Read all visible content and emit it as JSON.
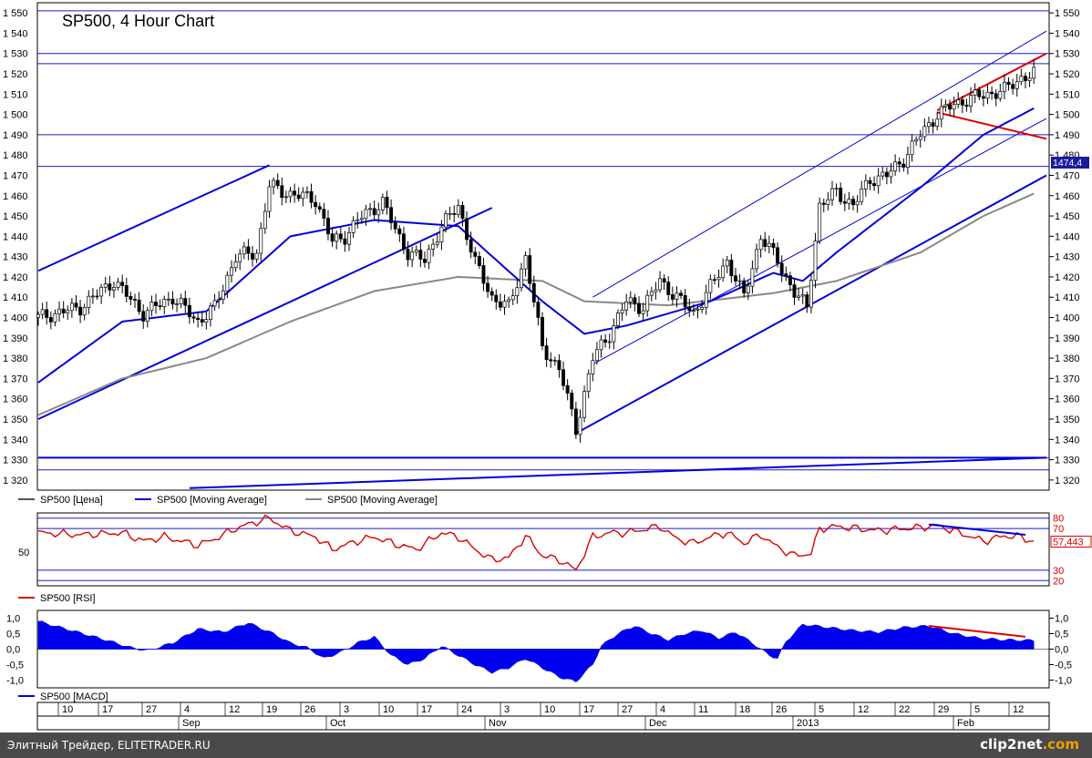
{
  "chart_data": [
    {
      "type": "candlestick",
      "title": "SP500, 4 Hour Chart",
      "ylim": [
        1315,
        1555
      ],
      "y_ticks": [
        1320,
        1330,
        1340,
        1350,
        1360,
        1370,
        1380,
        1390,
        1400,
        1410,
        1420,
        1430,
        1440,
        1450,
        1460,
        1470,
        1480,
        1490,
        1500,
        1510,
        1520,
        1530,
        1540,
        1550
      ],
      "last_price_label": "1474,4",
      "grid": false,
      "legend_position": "bottom-left",
      "legend": [
        {
          "label": "SP500 [Цена]",
          "color": "#555555"
        },
        {
          "label": "SP500 [Moving Average]",
          "color": "#0000dd"
        },
        {
          "label": "SP500 [Moving Average]",
          "color": "#888888"
        }
      ],
      "horizontal_levels": [
        1551,
        1530,
        1525,
        1490,
        1474.4,
        1331,
        1325
      ],
      "price_anchors": [
        [
          0,
          1400
        ],
        [
          10,
          1405
        ],
        [
          18,
          1418
        ],
        [
          25,
          1402
        ],
        [
          32,
          1410
        ],
        [
          38,
          1398
        ],
        [
          42,
          1405
        ],
        [
          47,
          1430
        ],
        [
          52,
          1432
        ],
        [
          55,
          1465
        ],
        [
          58,
          1462
        ],
        [
          62,
          1460
        ],
        [
          66,
          1458
        ],
        [
          70,
          1437
        ],
        [
          73,
          1440
        ],
        [
          76,
          1448
        ],
        [
          82,
          1457
        ],
        [
          85,
          1443
        ],
        [
          88,
          1432
        ],
        [
          92,
          1428
        ],
        [
          96,
          1445
        ],
        [
          100,
          1455
        ],
        [
          104,
          1427
        ],
        [
          108,
          1410
        ],
        [
          112,
          1405
        ],
        [
          116,
          1430
        ],
        [
          120,
          1385
        ],
        [
          124,
          1375
        ],
        [
          128,
          1345
        ],
        [
          132,
          1380
        ],
        [
          136,
          1392
        ],
        [
          140,
          1408
        ],
        [
          144,
          1405
        ],
        [
          148,
          1418
        ],
        [
          152,
          1410
        ],
        [
          156,
          1402
        ],
        [
          160,
          1415
        ],
        [
          164,
          1428
        ],
        [
          168,
          1410
        ],
        [
          172,
          1440
        ],
        [
          176,
          1428
        ],
        [
          180,
          1412
        ],
        [
          183,
          1405
        ],
        [
          186,
          1455
        ],
        [
          190,
          1462
        ],
        [
          194,
          1455
        ],
        [
          198,
          1468
        ],
        [
          202,
          1470
        ],
        [
          206,
          1478
        ],
        [
          210,
          1490
        ],
        [
          214,
          1500
        ],
        [
          218,
          1505
        ],
        [
          222,
          1508
        ],
        [
          226,
          1510
        ],
        [
          230,
          1512
        ],
        [
          234,
          1518
        ],
        [
          237,
          1520
        ]
      ],
      "moving_average_blue": [
        [
          0,
          1368
        ],
        [
          20,
          1398
        ],
        [
          40,
          1403
        ],
        [
          60,
          1440
        ],
        [
          80,
          1448
        ],
        [
          100,
          1445
        ],
        [
          120,
          1408
        ],
        [
          130,
          1392
        ],
        [
          140,
          1396
        ],
        [
          160,
          1408
        ],
        [
          175,
          1422
        ],
        [
          182,
          1418
        ],
        [
          190,
          1432
        ],
        [
          210,
          1464
        ],
        [
          225,
          1490
        ],
        [
          237,
          1503
        ]
      ],
      "moving_average_grey": [
        [
          0,
          1352
        ],
        [
          20,
          1370
        ],
        [
          40,
          1380
        ],
        [
          60,
          1398
        ],
        [
          80,
          1413
        ],
        [
          100,
          1420
        ],
        [
          120,
          1418
        ],
        [
          130,
          1408
        ],
        [
          150,
          1406
        ],
        [
          175,
          1412
        ],
        [
          190,
          1418
        ],
        [
          210,
          1432
        ],
        [
          225,
          1450
        ],
        [
          237,
          1461
        ]
      ],
      "trendlines": [
        {
          "color": "#0000dd",
          "from": [
            0,
            1423
          ],
          "to": [
            55,
            1475
          ]
        },
        {
          "color": "#0000dd",
          "from": [
            0,
            1350
          ],
          "to": [
            108,
            1454
          ]
        },
        {
          "color": "#0000dd",
          "from": [
            128,
            1343
          ],
          "to": [
            240,
            1470
          ]
        },
        {
          "color": "#0000dd",
          "from": [
            132,
            1377
          ],
          "to": [
            240,
            1498
          ]
        },
        {
          "color": "#0000dd",
          "from": [
            132,
            1410
          ],
          "to": [
            240,
            1541
          ]
        },
        {
          "color": "#dd0000",
          "from": [
            214,
            1502
          ],
          "to": [
            240,
            1530
          ]
        },
        {
          "color": "#dd0000",
          "from": [
            214,
            1501
          ],
          "to": [
            240,
            1488
          ]
        },
        {
          "color": "#0000dd",
          "from": [
            0,
            1331
          ],
          "to": [
            240,
            1331
          ]
        },
        {
          "color": "#0000dd",
          "from": [
            36,
            1316
          ],
          "to": [
            240,
            1331
          ]
        }
      ]
    },
    {
      "type": "line",
      "name": "SP500 [RSI]",
      "ylim": [
        15,
        85
      ],
      "levels": [
        80,
        70,
        30,
        20
      ],
      "level_labels": [
        "80",
        "70",
        "30",
        "20"
      ],
      "left_tick": "50",
      "current_value_label": "57,443",
      "values_anchors": [
        [
          0,
          66
        ],
        [
          10,
          64
        ],
        [
          20,
          66
        ],
        [
          25,
          58
        ],
        [
          30,
          62
        ],
        [
          38,
          54
        ],
        [
          42,
          60
        ],
        [
          47,
          70
        ],
        [
          50,
          74
        ],
        [
          55,
          80
        ],
        [
          60,
          68
        ],
        [
          66,
          62
        ],
        [
          70,
          50
        ],
        [
          76,
          58
        ],
        [
          80,
          62
        ],
        [
          85,
          55
        ],
        [
          90,
          50
        ],
        [
          96,
          66
        ],
        [
          100,
          62
        ],
        [
          104,
          50
        ],
        [
          108,
          40
        ],
        [
          112,
          42
        ],
        [
          116,
          63
        ],
        [
          120,
          44
        ],
        [
          124,
          40
        ],
        [
          128,
          30
        ],
        [
          132,
          62
        ],
        [
          136,
          66
        ],
        [
          140,
          66
        ],
        [
          148,
          72
        ],
        [
          152,
          60
        ],
        [
          156,
          56
        ],
        [
          160,
          62
        ],
        [
          164,
          66
        ],
        [
          168,
          56
        ],
        [
          172,
          64
        ],
        [
          176,
          52
        ],
        [
          180,
          44
        ],
        [
          184,
          46
        ],
        [
          186,
          70
        ],
        [
          190,
          72
        ],
        [
          200,
          68
        ],
        [
          210,
          71
        ],
        [
          214,
          73
        ],
        [
          220,
          65
        ],
        [
          225,
          58
        ],
        [
          230,
          63
        ],
        [
          234,
          62
        ],
        [
          237,
          57
        ]
      ],
      "divergence": {
        "color": "#0000dd",
        "from": [
          212,
          74
        ],
        "to": [
          235,
          64
        ]
      }
    },
    {
      "type": "area",
      "name": "SP500 [MACD]",
      "ylim": [
        -1.25,
        1.25
      ],
      "y_ticks": [
        1.0,
        0.5,
        0.0,
        -0.5,
        -1.0
      ],
      "y_tick_labels": [
        "1,0",
        "0,5",
        "0,0",
        "-0,5",
        "-1,0"
      ],
      "values_anchors": [
        [
          0,
          0.9
        ],
        [
          8,
          0.6
        ],
        [
          16,
          0.3
        ],
        [
          22,
          0.05
        ],
        [
          26,
          -0.05
        ],
        [
          32,
          0.2
        ],
        [
          38,
          0.65
        ],
        [
          44,
          0.55
        ],
        [
          50,
          0.85
        ],
        [
          56,
          0.5
        ],
        [
          60,
          0.2
        ],
        [
          64,
          0.05
        ],
        [
          68,
          -0.3
        ],
        [
          72,
          -0.1
        ],
        [
          76,
          0.2
        ],
        [
          80,
          0.4
        ],
        [
          84,
          -0.2
        ],
        [
          88,
          -0.5
        ],
        [
          92,
          -0.3
        ],
        [
          96,
          0.1
        ],
        [
          100,
          -0.2
        ],
        [
          104,
          -0.5
        ],
        [
          108,
          -0.75
        ],
        [
          112,
          -0.6
        ],
        [
          116,
          -0.3
        ],
        [
          120,
          -0.6
        ],
        [
          124,
          -0.9
        ],
        [
          128,
          -1.05
        ],
        [
          132,
          -0.5
        ],
        [
          134,
          0.1
        ],
        [
          138,
          0.5
        ],
        [
          142,
          0.75
        ],
        [
          146,
          0.5
        ],
        [
          150,
          0.3
        ],
        [
          154,
          0.5
        ],
        [
          158,
          0.6
        ],
        [
          162,
          0.35
        ],
        [
          166,
          0.55
        ],
        [
          170,
          0.2
        ],
        [
          174,
          -0.2
        ],
        [
          176,
          -0.3
        ],
        [
          178,
          0.25
        ],
        [
          182,
          0.8
        ],
        [
          188,
          0.7
        ],
        [
          194,
          0.6
        ],
        [
          200,
          0.55
        ],
        [
          206,
          0.7
        ],
        [
          212,
          0.75
        ],
        [
          218,
          0.5
        ],
        [
          224,
          0.35
        ],
        [
          230,
          0.3
        ],
        [
          237,
          0.28
        ]
      ],
      "divergence": {
        "color": "#dd0000",
        "from": [
          212,
          0.75
        ],
        "to": [
          235,
          0.4
        ]
      }
    }
  ],
  "x_axis": {
    "day_labels": [
      "10",
      "17",
      "27",
      "4",
      "12",
      "19",
      "26",
      "3",
      "10",
      "17",
      "24",
      "3",
      "10",
      "17",
      "27",
      "4",
      "11",
      "18",
      "26",
      "5",
      "12",
      "22",
      "29",
      "5",
      "12"
    ],
    "month_labels": [
      "Sep",
      "Oct",
      "Nov",
      "Dec",
      "2013",
      "Feb"
    ]
  },
  "footer": {
    "text": "Элитный Трейдер, ELITETRADER.RU",
    "logo_main": "clip2net",
    "logo_suffix": ".com"
  }
}
